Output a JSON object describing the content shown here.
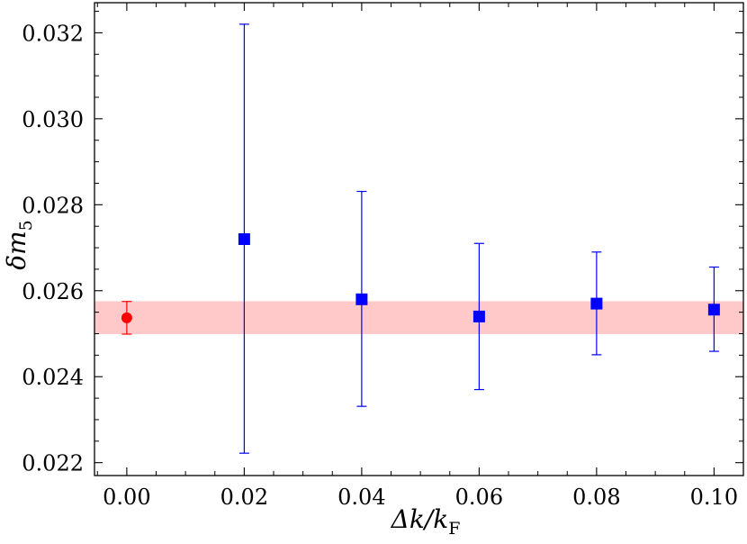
{
  "chart_data": {
    "type": "scatter",
    "xlabel": "Δk/k_F",
    "ylabel": "δm_5",
    "xlim": [
      -0.0055,
      0.105
    ],
    "ylim": [
      0.0217,
      0.0327
    ],
    "x_ticks": [
      0.0,
      0.02,
      0.04,
      0.06,
      0.08,
      0.1
    ],
    "x_tick_labels": [
      "0.00",
      "0.02",
      "0.04",
      "0.06",
      "0.08",
      "0.10"
    ],
    "y_ticks": [
      0.022,
      0.024,
      0.026,
      0.028,
      0.03,
      0.032
    ],
    "y_tick_labels": [
      "0.022",
      "0.024",
      "0.026",
      "0.028",
      "0.030",
      "0.032"
    ],
    "grid": false,
    "band": {
      "ymin": 0.02499,
      "ymax": 0.025755,
      "color": "#ffc9c9"
    },
    "series": [
      {
        "marker": "circle",
        "color": "#ff0000",
        "points": [
          {
            "x": 0.0,
            "y": 0.02537,
            "yerr_low": 0.02499,
            "yerr_high": 0.02575
          }
        ]
      },
      {
        "marker": "square",
        "color": "#0000ff",
        "points": [
          {
            "x": 0.02,
            "y": 0.0272,
            "yerr_low": 0.02222,
            "yerr_high": 0.0322
          },
          {
            "x": 0.04,
            "y": 0.0258,
            "yerr_low": 0.02331,
            "yerr_high": 0.02831
          },
          {
            "x": 0.06,
            "y": 0.0254,
            "yerr_low": 0.0237,
            "yerr_high": 0.0271
          },
          {
            "x": 0.08,
            "y": 0.0257,
            "yerr_low": 0.02451,
            "yerr_high": 0.0269
          },
          {
            "x": 0.1,
            "y": 0.02556,
            "yerr_low": 0.02459,
            "yerr_high": 0.02655
          }
        ]
      }
    ]
  }
}
